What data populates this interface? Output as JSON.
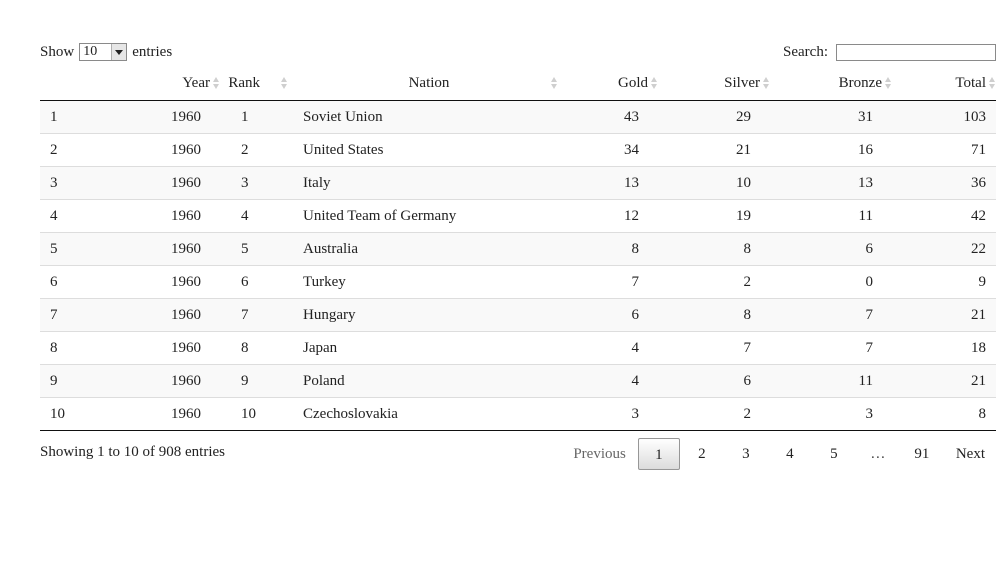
{
  "length": {
    "show": "Show",
    "value": "10",
    "entries": "entries"
  },
  "search": {
    "label": "Search:",
    "value": ""
  },
  "table": {
    "columns": [
      "",
      "Year",
      "Rank",
      "Nation",
      "Gold",
      "Silver",
      "Bronze",
      "Total"
    ],
    "rows": [
      [
        "1",
        "1960",
        "1",
        "Soviet Union",
        "43",
        "29",
        "31",
        "103"
      ],
      [
        "2",
        "1960",
        "2",
        "United States",
        "34",
        "21",
        "16",
        "71"
      ],
      [
        "3",
        "1960",
        "3",
        "Italy",
        "13",
        "10",
        "13",
        "36"
      ],
      [
        "4",
        "1960",
        "4",
        "United Team of Germany",
        "12",
        "19",
        "11",
        "42"
      ],
      [
        "5",
        "1960",
        "5",
        "Australia",
        "8",
        "8",
        "6",
        "22"
      ],
      [
        "6",
        "1960",
        "6",
        "Turkey",
        "7",
        "2",
        "0",
        "9"
      ],
      [
        "7",
        "1960",
        "7",
        "Hungary",
        "6",
        "8",
        "7",
        "21"
      ],
      [
        "8",
        "1960",
        "8",
        "Japan",
        "4",
        "7",
        "7",
        "18"
      ],
      [
        "9",
        "1960",
        "9",
        "Poland",
        "4",
        "6",
        "11",
        "21"
      ],
      [
        "10",
        "1960",
        "10",
        "Czechoslovakia",
        "3",
        "2",
        "3",
        "8"
      ]
    ]
  },
  "info": "Showing 1 to 10 of 908 entries",
  "pagination": {
    "previous": "Previous",
    "pages": [
      "1",
      "2",
      "3",
      "4",
      "5"
    ],
    "ellipsis": "…",
    "last": "91",
    "next": "Next",
    "current": "1"
  }
}
